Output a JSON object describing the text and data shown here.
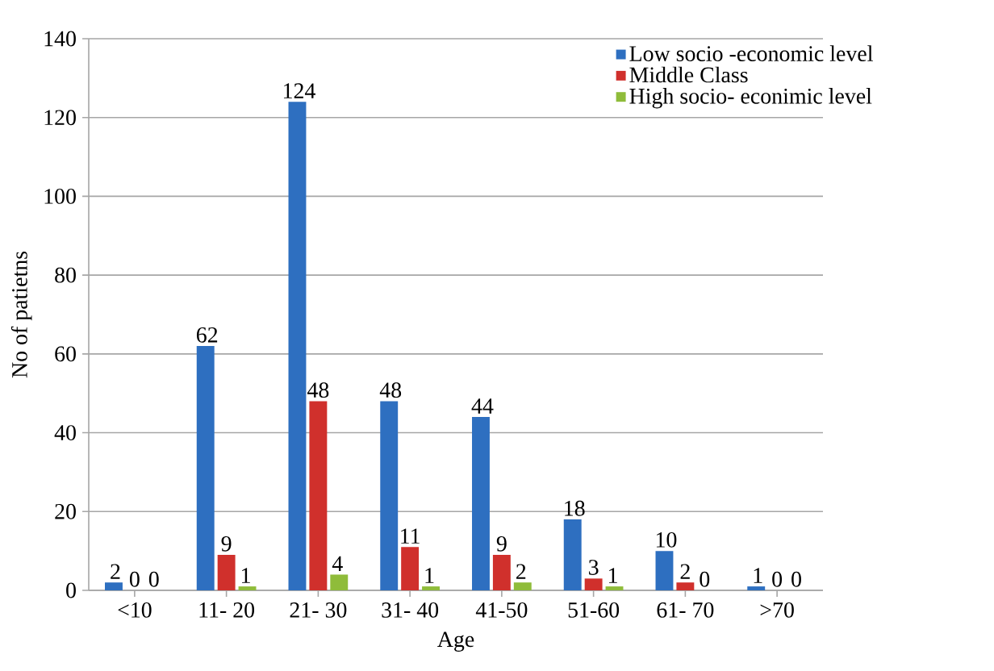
{
  "chart_data": {
    "type": "bar",
    "xlabel": "Age",
    "ylabel": "No of patietns",
    "categories": [
      "<10",
      "11- 20",
      "21- 30",
      "31- 40",
      "41-50",
      "51-60",
      "61- 70",
      ">70"
    ],
    "series": [
      {
        "name": "Low socio -economic level",
        "color": "#2e6fc0",
        "values": [
          2,
          62,
          124,
          48,
          44,
          18,
          10,
          1
        ]
      },
      {
        "name": "Middle Class",
        "color": "#d0302c",
        "values": [
          0,
          9,
          48,
          11,
          9,
          3,
          2,
          0
        ]
      },
      {
        "name": "High socio- econimic level",
        "color": "#8fbc3a",
        "values": [
          0,
          1,
          4,
          1,
          2,
          1,
          0,
          0
        ]
      }
    ],
    "ylim": [
      0,
      140
    ],
    "yticks": [
      0,
      20,
      40,
      60,
      80,
      100,
      120,
      140
    ],
    "grid": "y",
    "legend": "top right",
    "data_labels": true
  }
}
